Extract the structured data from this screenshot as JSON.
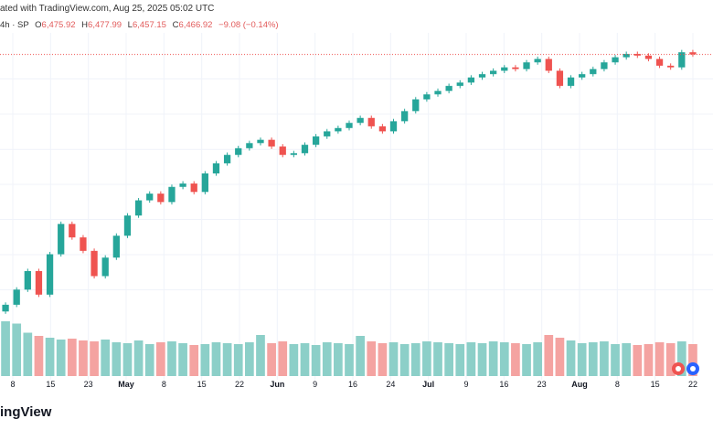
{
  "header": {
    "attribution": "ated with TradingView.com, Aug 25, 2025 05:02 UTC"
  },
  "ohlc": {
    "symbol": "4h · SP",
    "open_label": "O",
    "open": "6,475.92",
    "high_label": "H",
    "high": "6,477.99",
    "low_label": "L",
    "low": "6,457.15",
    "close_label": "C",
    "close": "6,466.92",
    "change": "−9.08 (−0.14%)"
  },
  "colors": {
    "up": "#26a69a",
    "down": "#ef5350",
    "up_volume": "#8ccfc8",
    "down_volume": "#f4a3a1",
    "grid": "#f0f3fa",
    "last_price_line": "#ef5350"
  },
  "footer": {
    "brand": "ingView"
  },
  "chart_data": {
    "type": "candlestick",
    "title": "",
    "xlabel": "",
    "ylabel": "",
    "x_ticks": [
      "8",
      "15",
      "23",
      "May",
      "8",
      "15",
      "22",
      "Jun",
      "9",
      "16",
      "24",
      "Jul",
      "9",
      "16",
      "23",
      "Aug",
      "8",
      "15",
      "22"
    ],
    "last_price": 6466.92,
    "grid": true,
    "series": [
      {
        "name": "SP",
        "closes": [
          4980,
          5070,
          5180,
          5040,
          5280,
          5460,
          5380,
          5300,
          5150,
          5260,
          5390,
          5510,
          5600,
          5640,
          5590,
          5680,
          5700,
          5650,
          5760,
          5820,
          5870,
          5910,
          5940,
          5960,
          5920,
          5870,
          5880,
          5930,
          5980,
          6010,
          6030,
          6060,
          6090,
          6040,
          6010,
          6070,
          6130,
          6200,
          6230,
          6250,
          6280,
          6300,
          6330,
          6350,
          6370,
          6390,
          6380,
          6420,
          6440,
          6370,
          6280,
          6330,
          6350,
          6380,
          6420,
          6450,
          6470,
          6460,
          6440,
          6400,
          6390,
          6480,
          6467
        ],
        "volumes": [
          120,
          115,
          95,
          88,
          84,
          80,
          82,
          78,
          76,
          80,
          74,
          72,
          78,
          70,
          74,
          76,
          72,
          68,
          70,
          74,
          72,
          70,
          74,
          90,
          72,
          76,
          70,
          72,
          68,
          74,
          72,
          70,
          88,
          76,
          72,
          74,
          70,
          72,
          76,
          74,
          72,
          70,
          74,
          72,
          76,
          74,
          72,
          70,
          74,
          90,
          84,
          78,
          72,
          74,
          76,
          70,
          72,
          68,
          70,
          74,
          72,
          76,
          70
        ]
      }
    ]
  }
}
